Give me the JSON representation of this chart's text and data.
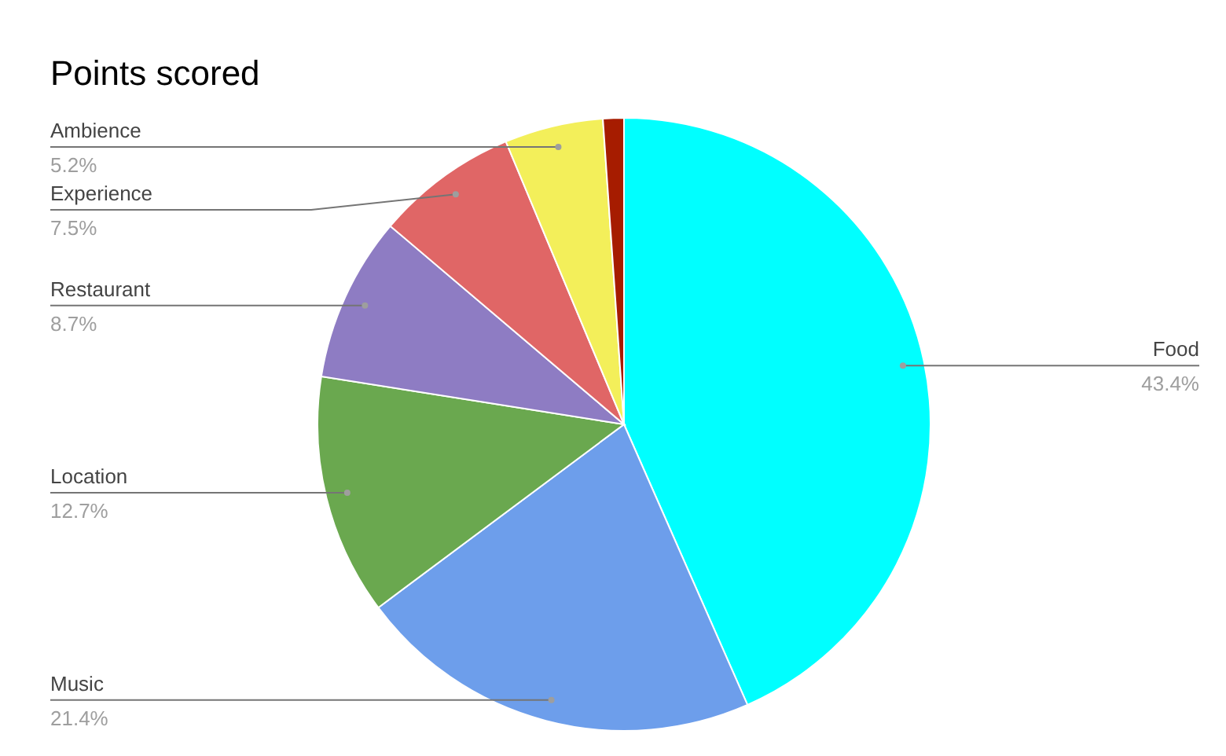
{
  "chart_data": {
    "type": "pie",
    "title": "Points scored",
    "categories": [
      "Food",
      "Music",
      "Location",
      "Restaurant",
      "Experience",
      "Ambience",
      null
    ],
    "values": [
      43.4,
      21.4,
      12.7,
      8.7,
      7.5,
      5.2,
      1.1
    ],
    "colors": [
      "#00ffff",
      "#6d9eeb",
      "#6aa84f",
      "#8e7cc3",
      "#e06666",
      "#f3ef5a",
      "#a61c00"
    ],
    "value_labels": [
      "43.4%",
      "21.4%",
      "12.7%",
      "8.7%",
      "7.5%",
      "5.2%",
      null
    ]
  }
}
